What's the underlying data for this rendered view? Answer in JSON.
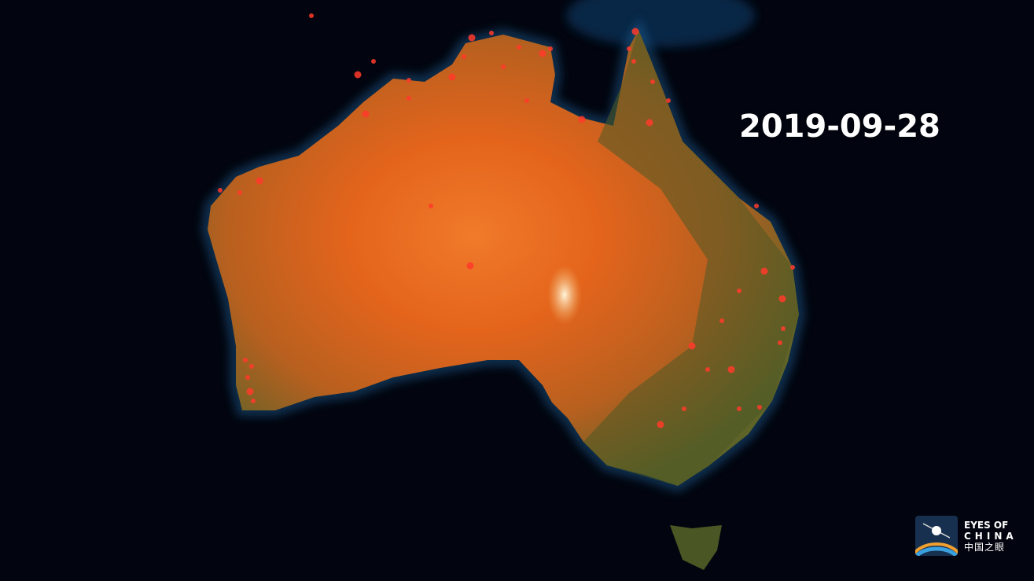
{
  "map": {
    "date_label": "2019-09-28",
    "subject": "Australia fire hotspots",
    "colors": {
      "ocean": "#02050f",
      "land_desert": "#e0661e",
      "land_green": "#6b6a2c",
      "fire": "#ff3a2a",
      "coast_glow": "#1c5c90"
    }
  },
  "logo": {
    "line1": "EYES OF",
    "line2": "CHINA",
    "line3": "中国之眼"
  }
}
